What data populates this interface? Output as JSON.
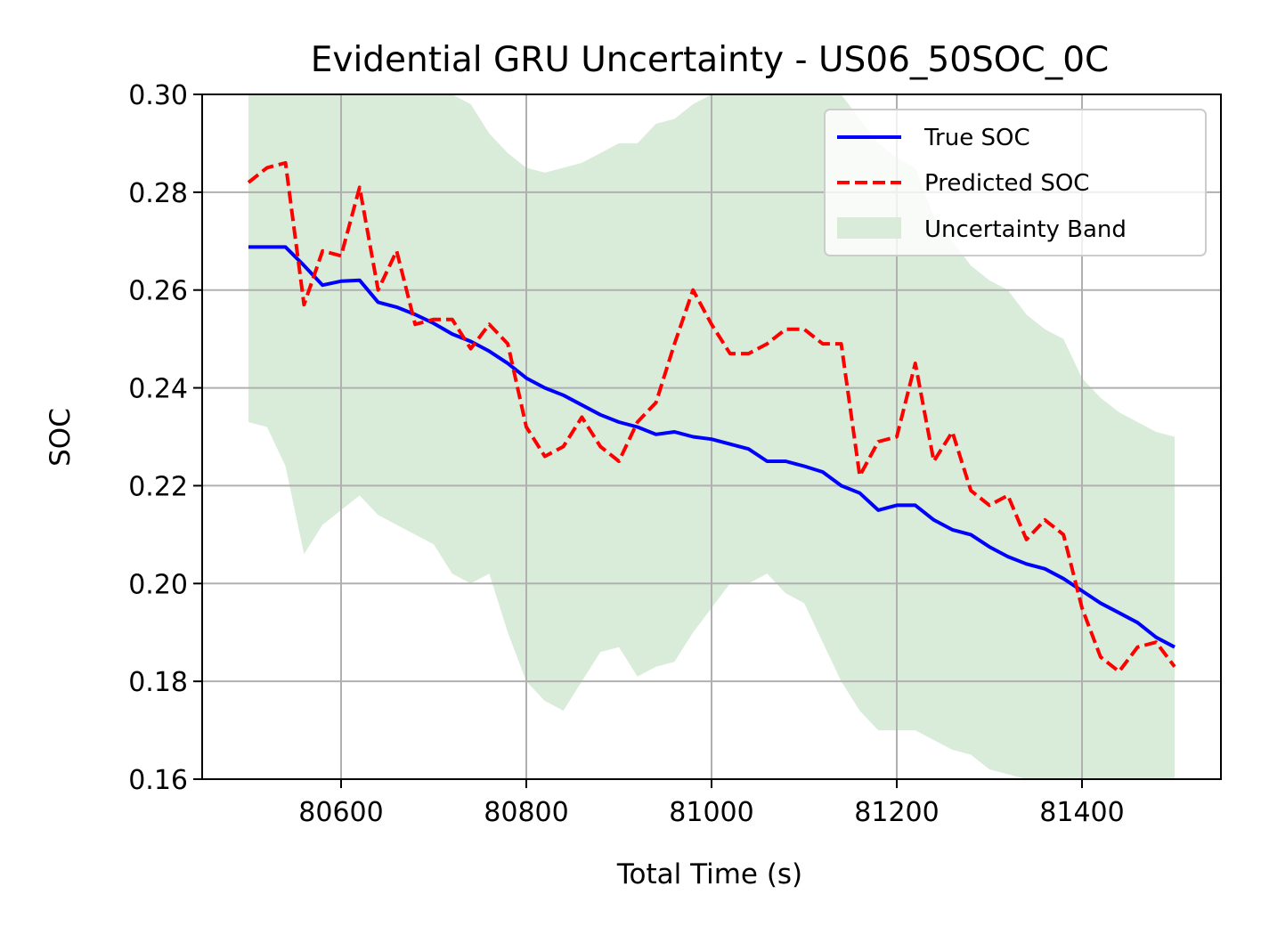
{
  "chart_data": {
    "type": "line",
    "title": "Evidential GRU Uncertainty - US06_50SOC_0C",
    "xlabel": "Total Time (s)",
    "ylabel": "SOC",
    "xlim": [
      80450,
      81550
    ],
    "ylim": [
      0.16,
      0.3
    ],
    "xticks": [
      80600,
      80800,
      81000,
      81200,
      81400
    ],
    "xtick_labels": [
      "80600",
      "80800",
      "81000",
      "81200",
      "81400"
    ],
    "yticks": [
      0.16,
      0.18,
      0.2,
      0.22,
      0.24,
      0.26,
      0.28,
      0.3
    ],
    "ytick_labels": [
      "0.16",
      "0.18",
      "0.20",
      "0.22",
      "0.24",
      "0.26",
      "0.28",
      "0.30"
    ],
    "grid": true,
    "legend_position": "top-right",
    "legend": [
      "True SOC",
      "Predicted SOC",
      "Uncertainty Band"
    ],
    "colors": {
      "true": "#0000ff",
      "predicted": "#ff0000",
      "band": "#d9ecd9"
    },
    "x": [
      80500,
      80520,
      80540,
      80560,
      80580,
      80600,
      80620,
      80640,
      80660,
      80680,
      80700,
      80720,
      80740,
      80760,
      80780,
      80800,
      80820,
      80840,
      80860,
      80880,
      80900,
      80920,
      80940,
      80960,
      80980,
      81000,
      81020,
      81040,
      81060,
      81080,
      81100,
      81120,
      81140,
      81160,
      81180,
      81200,
      81220,
      81240,
      81260,
      81280,
      81300,
      81320,
      81340,
      81360,
      81380,
      81400,
      81420,
      81440,
      81460,
      81480,
      81500
    ],
    "series": [
      {
        "name": "True SOC",
        "style": "solid",
        "values": [
          0.2688,
          0.2688,
          0.2688,
          0.265,
          0.261,
          0.2618,
          0.262,
          0.2575,
          0.2565,
          0.255,
          0.2532,
          0.251,
          0.2495,
          0.2475,
          0.245,
          0.242,
          0.24,
          0.2385,
          0.2365,
          0.2345,
          0.233,
          0.232,
          0.2305,
          0.231,
          0.23,
          0.2295,
          0.2285,
          0.2275,
          0.225,
          0.225,
          0.224,
          0.2228,
          0.22,
          0.2185,
          0.215,
          0.216,
          0.216,
          0.213,
          0.211,
          0.21,
          0.2075,
          0.2055,
          0.204,
          0.203,
          0.201,
          0.1985,
          0.196,
          0.194,
          0.192,
          0.189,
          0.187
        ]
      },
      {
        "name": "Predicted SOC",
        "style": "dashed",
        "values": [
          0.282,
          0.285,
          0.286,
          0.257,
          0.268,
          0.267,
          0.281,
          0.26,
          0.268,
          0.253,
          0.254,
          0.254,
          0.248,
          0.253,
          0.249,
          0.232,
          0.226,
          0.228,
          0.234,
          0.228,
          0.225,
          0.233,
          0.237,
          0.249,
          0.26,
          0.253,
          0.247,
          0.247,
          0.249,
          0.252,
          0.252,
          0.249,
          0.249,
          0.222,
          0.229,
          0.23,
          0.245,
          0.225,
          0.231,
          0.219,
          0.216,
          0.218,
          0.209,
          0.213,
          0.21,
          0.195,
          0.185,
          0.182,
          0.187,
          0.188,
          0.183
        ]
      },
      {
        "name": "Uncertainty Band",
        "style": "band",
        "lower": [
          0.233,
          0.232,
          0.224,
          0.206,
          0.212,
          0.215,
          0.218,
          0.214,
          0.212,
          0.21,
          0.208,
          0.202,
          0.2,
          0.202,
          0.19,
          0.18,
          0.176,
          0.174,
          0.18,
          0.186,
          0.187,
          0.181,
          0.183,
          0.184,
          0.19,
          0.195,
          0.2,
          0.2,
          0.202,
          0.198,
          0.196,
          0.188,
          0.18,
          0.174,
          0.17,
          0.17,
          0.17,
          0.168,
          0.166,
          0.165,
          0.162,
          0.161,
          0.16,
          0.16,
          0.16,
          0.16,
          0.16,
          0.16,
          0.16,
          0.16,
          0.16
        ],
        "upper": [
          0.3,
          0.3,
          0.3,
          0.3,
          0.3,
          0.3,
          0.3,
          0.3,
          0.3,
          0.3,
          0.3,
          0.3,
          0.298,
          0.292,
          0.288,
          0.285,
          0.284,
          0.285,
          0.286,
          0.288,
          0.29,
          0.29,
          0.294,
          0.295,
          0.298,
          0.3,
          0.3,
          0.3,
          0.3,
          0.3,
          0.3,
          0.3,
          0.3,
          0.295,
          0.29,
          0.287,
          0.285,
          0.275,
          0.27,
          0.265,
          0.262,
          0.26,
          0.255,
          0.252,
          0.25,
          0.242,
          0.238,
          0.235,
          0.233,
          0.231,
          0.23
        ]
      }
    ]
  }
}
